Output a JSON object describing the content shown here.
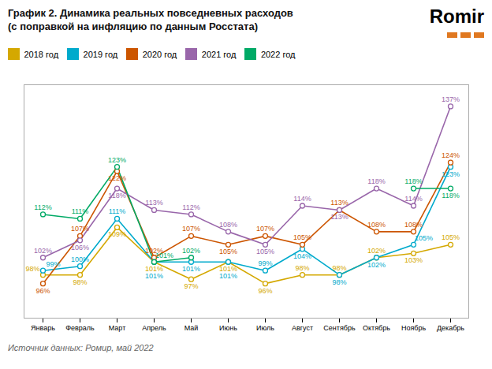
{
  "chart_data": {
    "type": "line",
    "title": "График 2. Динамика реальных повседневных расходов",
    "subtitle": "(с поправкой на инфляцию по данным Росстата)",
    "annotations": [
      "Источник данных: Ромир, май 2022",
      "Romir"
    ],
    "categories": [
      "Январь",
      "Февраль",
      "Март",
      "Апрель",
      "Май",
      "Июнь",
      "Июль",
      "Август",
      "Сентябрь",
      "Октябрь",
      "Ноябрь",
      "Декабрь"
    ],
    "series": [
      {
        "name": "2018 год",
        "color": "#d4a800",
        "values": [
          98,
          98,
          109,
          101,
          97,
          101,
          96,
          98,
          98,
          102,
          103,
          105
        ],
        "value_labels": [
          "98%",
          "98%",
          "109%",
          "101%",
          "97%",
          "101%",
          "96%",
          "98%",
          "98%",
          "102%",
          "103%",
          "105%"
        ]
      },
      {
        "name": "2019 год",
        "color": "#00aacc",
        "values": [
          99,
          100,
          111,
          101,
          101,
          101,
          99,
          104,
          98,
          102,
          105,
          123
        ],
        "value_labels": [
          "99%",
          "100%",
          "111%",
          "101%",
          "101%",
          "101%",
          "99%",
          "104%",
          "98%",
          "102%",
          "105%",
          "123%"
        ]
      },
      {
        "name": "2020 год",
        "color": "#cc5500",
        "values": [
          96,
          107,
          122,
          102,
          107,
          105,
          107,
          105,
          113,
          108,
          108,
          124
        ],
        "value_labels": [
          "96%",
          "107%",
          "122%",
          "102%",
          "107%",
          "105%",
          "107%",
          "105%",
          "113%",
          "108%",
          "108%",
          "124%"
        ]
      },
      {
        "name": "2021 год",
        "color": "#9966aa",
        "values": [
          102,
          106,
          118,
          113,
          112,
          108,
          105,
          114,
          113,
          118,
          114,
          137
        ],
        "value_labels": [
          "102%",
          "106%",
          "118%",
          "113%",
          "112%",
          "108%",
          "105%",
          "114%",
          "113%",
          "118%",
          "114%",
          "137%"
        ]
      },
      {
        "name": "2022 год",
        "color": "#00aa66",
        "values": [
          112,
          111,
          123,
          101,
          102,
          null,
          null,
          null,
          null,
          null,
          118,
          118
        ],
        "value_labels": [
          "112%",
          "111%",
          "123%",
          "101%",
          "102%",
          null,
          null,
          null,
          null,
          null,
          "118%",
          "118%"
        ]
      }
    ],
    "ylim": [
      88,
      142
    ],
    "tick_labels": "x",
    "grid": false,
    "legend": "upper left",
    "data_labels": true,
    "marker": "circle"
  }
}
